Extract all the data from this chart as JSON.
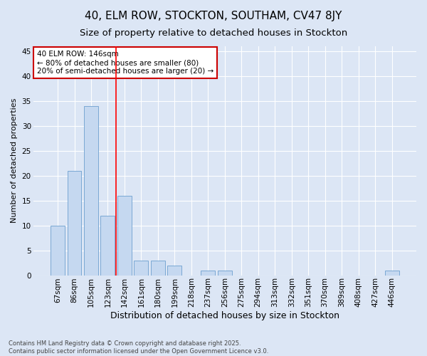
{
  "title": "40, ELM ROW, STOCKTON, SOUTHAM, CV47 8JY",
  "subtitle": "Size of property relative to detached houses in Stockton",
  "xlabel": "Distribution of detached houses by size in Stockton",
  "ylabel": "Number of detached properties",
  "categories": [
    "67sqm",
    "86sqm",
    "105sqm",
    "123sqm",
    "142sqm",
    "161sqm",
    "180sqm",
    "199sqm",
    "218sqm",
    "237sqm",
    "256sqm",
    "275sqm",
    "294sqm",
    "313sqm",
    "332sqm",
    "351sqm",
    "370sqm",
    "389sqm",
    "408sqm",
    "427sqm",
    "446sqm"
  ],
  "values": [
    10,
    21,
    34,
    12,
    16,
    3,
    3,
    2,
    0,
    1,
    1,
    0,
    0,
    0,
    0,
    0,
    0,
    0,
    0,
    0,
    1
  ],
  "bar_color": "#c5d8f0",
  "bar_edge_color": "#7aa8d4",
  "background_color": "#dce6f5",
  "grid_color": "#ffffff",
  "red_line_index": 4,
  "annotation_text": "40 ELM ROW: 146sqm\n← 80% of detached houses are smaller (80)\n20% of semi-detached houses are larger (20) →",
  "annotation_box_color": "#ffffff",
  "annotation_box_edge": "#cc0000",
  "ylim": [
    0,
    46
  ],
  "yticks": [
    0,
    5,
    10,
    15,
    20,
    25,
    30,
    35,
    40,
    45
  ],
  "footer": "Contains HM Land Registry data © Crown copyright and database right 2025.\nContains public sector information licensed under the Open Government Licence v3.0.",
  "title_fontsize": 11,
  "subtitle_fontsize": 9.5,
  "xlabel_fontsize": 9,
  "ylabel_fontsize": 8,
  "tick_fontsize": 7.5,
  "annotation_fontsize": 7.5,
  "footer_fontsize": 6
}
